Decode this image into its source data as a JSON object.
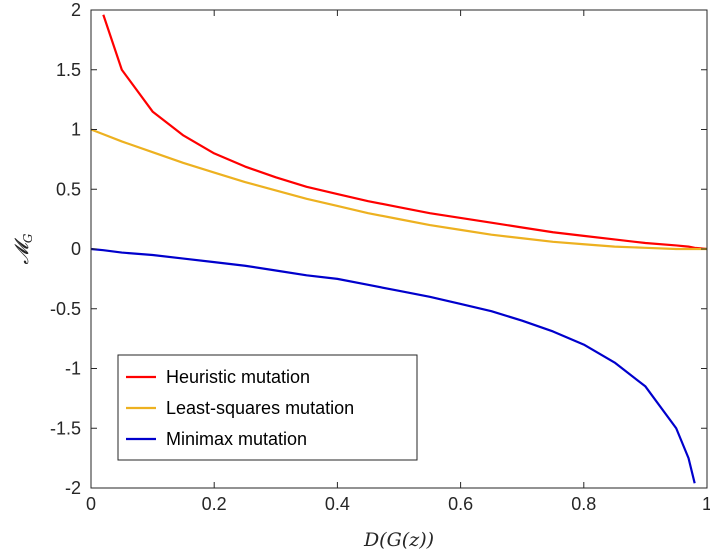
{
  "chart_data": {
    "type": "line",
    "title": "",
    "xlabel": "D(G(z))",
    "ylabel": "M_G",
    "xlim": [
      0,
      1
    ],
    "ylim": [
      -2,
      2
    ],
    "xticks": [
      "0",
      "0.2",
      "0.4",
      "0.6",
      "0.8",
      "1"
    ],
    "yticks": [
      "-2",
      "-1.5",
      "-1",
      "-0.5",
      "0",
      "0.5",
      "1",
      "1.5",
      "2"
    ],
    "grid": false,
    "legend_position": "bottom-left",
    "x": [
      0.0,
      0.02,
      0.05,
      0.1,
      0.15,
      0.2,
      0.25,
      0.3,
      0.35,
      0.4,
      0.45,
      0.5,
      0.55,
      0.6,
      0.65,
      0.7,
      0.75,
      0.8,
      0.85,
      0.9,
      0.95,
      0.97,
      0.98,
      0.99,
      1.0
    ],
    "series": [
      {
        "name": "Heuristic mutation",
        "color": "#ff0000",
        "values": [
          null,
          1.96,
          1.5,
          1.15,
          0.95,
          0.8,
          0.69,
          0.6,
          0.52,
          0.46,
          0.4,
          0.35,
          0.3,
          0.26,
          0.22,
          0.18,
          0.14,
          0.11,
          0.08,
          0.05,
          0.03,
          0.02,
          0.01,
          0.005,
          0.0
        ]
      },
      {
        "name": "Least-squares mutation",
        "color": "#edb120",
        "values": [
          1.0,
          0.96,
          0.9,
          0.81,
          0.72,
          0.64,
          0.56,
          0.49,
          0.42,
          0.36,
          0.3,
          0.25,
          0.2,
          0.16,
          0.12,
          0.09,
          0.06,
          0.04,
          0.02,
          0.01,
          0.0,
          0.0,
          0.0,
          0.0,
          0.0
        ]
      },
      {
        "name": "Minimax mutation",
        "color": "#0000cc",
        "values": [
          0.0,
          -0.01,
          -0.03,
          -0.05,
          -0.08,
          -0.11,
          -0.14,
          -0.18,
          -0.22,
          -0.25,
          -0.3,
          -0.35,
          -0.4,
          -0.46,
          -0.52,
          -0.6,
          -0.69,
          -0.8,
          -0.95,
          -1.15,
          -1.5,
          -1.75,
          -1.96,
          null,
          null
        ]
      }
    ]
  }
}
